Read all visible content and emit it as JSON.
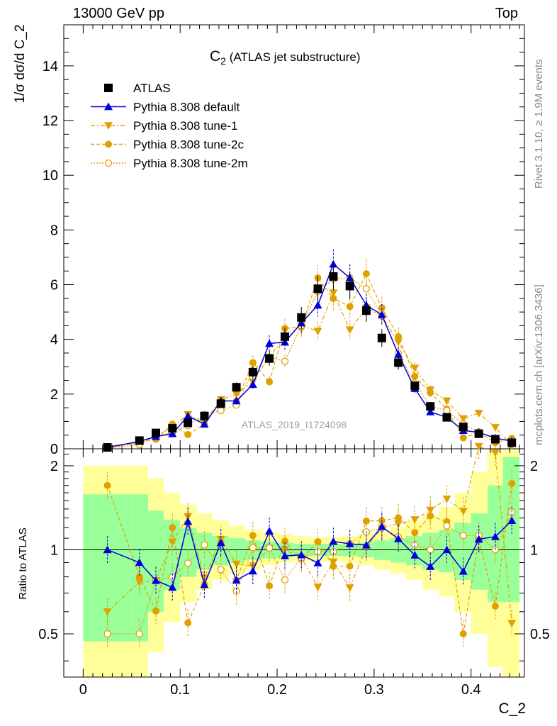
{
  "header": {
    "left_label": "13000 GeV pp",
    "right_label": "Top",
    "side_label_1": "Rivet 3.1.10, ≥ 1.9M events",
    "side_label_2": "mcplots.cern.ch [arXiv:1306.3436]"
  },
  "chart_data": {
    "type": "line",
    "title": "C",
    "title_sub": "2",
    "title_suffix": " (ATLAS jet substructure)",
    "watermark": "ATLAS_2019_I1724098",
    "xlabel": "C_2",
    "ylabel_main": "1/σ dσ/d C_2",
    "ylabel_ratio": "Ratio to ATLAS",
    "xlim": [
      -0.02,
      0.455
    ],
    "ylim_main": [
      0,
      15.5
    ],
    "ylim_ratio": [
      0.35,
      2.3
    ],
    "x_ticks": [
      "0",
      "0.1",
      "0.2",
      "0.3",
      "0.4"
    ],
    "y_ticks_main": [
      "0",
      "2",
      "4",
      "6",
      "8",
      "10",
      "12",
      "14"
    ],
    "y_ticks_ratio": [
      "0.5",
      "1",
      "2"
    ],
    "x": [
      0.025,
      0.058,
      0.075,
      0.092,
      0.108,
      0.125,
      0.142,
      0.158,
      0.175,
      0.192,
      0.208,
      0.225,
      0.242,
      0.258,
      0.275,
      0.292,
      0.308,
      0.325,
      0.342,
      0.358,
      0.375,
      0.392,
      0.408,
      0.425,
      0.442
    ],
    "series": [
      {
        "name": "ATLAS",
        "color": "#000000",
        "marker": "square",
        "values": [
          0.05,
          0.3,
          0.58,
          0.75,
          0.95,
          1.2,
          1.65,
          2.25,
          2.8,
          3.3,
          4.1,
          4.8,
          5.85,
          6.3,
          5.95,
          5.05,
          4.05,
          3.15,
          2.3,
          1.55,
          1.15,
          0.8,
          0.55,
          0.35,
          0.22
        ]
      },
      {
        "name": "Pythia 8.308 default",
        "color": "#0000dd",
        "marker": "triangle-up",
        "values": [
          0.05,
          0.27,
          0.45,
          0.55,
          1.2,
          0.9,
          1.75,
          1.75,
          2.35,
          3.85,
          3.9,
          4.6,
          5.25,
          6.75,
          6.25,
          5.25,
          4.9,
          3.45,
          2.2,
          1.35,
          1.15,
          0.67,
          0.6,
          0.39,
          0.28
        ]
      },
      {
        "name": "Pythia 8.308 tune-1",
        "color": "#e0a000",
        "marker": "triangle-down",
        "values": [
          0.03,
          0.23,
          0.45,
          0.8,
          1.25,
          0.95,
          1.8,
          2.0,
          2.45,
          3.35,
          4.1,
          4.5,
          4.3,
          5.7,
          4.35,
          5.15,
          4.85,
          3.9,
          2.95,
          2.15,
          1.75,
          1.1,
          1.3,
          0.78,
          0.12
        ]
      },
      {
        "name": "Pythia 8.308 tune-2c",
        "color": "#e0a000",
        "marker": "circle",
        "values": [
          0.085,
          0.24,
          0.35,
          0.9,
          0.52,
          0.9,
          1.75,
          1.75,
          3.15,
          2.45,
          4.4,
          4.45,
          6.25,
          5.5,
          5.2,
          6.4,
          5.15,
          4.1,
          2.65,
          2.05,
          1.45,
          0.4,
          0.6,
          0.22,
          0.38
        ]
      },
      {
        "name": "Pythia 8.308 tune-2m",
        "color": "#e0a000",
        "marker": "circle-open",
        "values": [
          0.025,
          0.15,
          0.45,
          0.6,
          0.85,
          1.25,
          1.4,
          1.6,
          2.85,
          3.35,
          3.2,
          4.5,
          5.75,
          6.2,
          6.25,
          5.85,
          4.85,
          3.5,
          2.4,
          1.55,
          1.4,
          0.9,
          0.62,
          0.35,
          0.3
        ]
      }
    ],
    "ratio_band": {
      "x_edges": [
        0.0,
        0.05,
        0.067,
        0.083,
        0.1,
        0.117,
        0.133,
        0.15,
        0.167,
        0.183,
        0.2,
        0.217,
        0.233,
        0.25,
        0.267,
        0.283,
        0.3,
        0.317,
        0.333,
        0.35,
        0.367,
        0.383,
        0.4,
        0.417,
        0.433,
        0.45
      ],
      "inner_lo": [
        0.47,
        0.47,
        0.6,
        0.72,
        0.8,
        0.85,
        0.88,
        0.9,
        0.92,
        0.93,
        0.94,
        0.95,
        0.95,
        0.95,
        0.95,
        0.94,
        0.92,
        0.9,
        0.88,
        0.85,
        0.83,
        0.78,
        0.72,
        0.65,
        0.65
      ],
      "inner_hi": [
        1.58,
        1.58,
        1.38,
        1.28,
        1.2,
        1.15,
        1.12,
        1.1,
        1.08,
        1.07,
        1.06,
        1.05,
        1.05,
        1.05,
        1.05,
        1.06,
        1.08,
        1.1,
        1.12,
        1.15,
        1.18,
        1.25,
        1.35,
        1.7,
        2.15
      ],
      "outer_lo": [
        0.35,
        0.35,
        0.43,
        0.55,
        0.65,
        0.72,
        0.78,
        0.82,
        0.85,
        0.88,
        0.9,
        0.91,
        0.91,
        0.91,
        0.9,
        0.88,
        0.85,
        0.82,
        0.78,
        0.72,
        0.68,
        0.6,
        0.5,
        0.38,
        0.35
      ],
      "outer_hi": [
        2.0,
        2.0,
        1.8,
        1.6,
        1.45,
        1.35,
        1.28,
        1.22,
        1.18,
        1.16,
        1.14,
        1.12,
        1.11,
        1.11,
        1.12,
        1.14,
        1.17,
        1.21,
        1.27,
        1.33,
        1.42,
        1.6,
        1.9,
        2.25,
        2.3
      ],
      "inner_color": "#99ff99",
      "outer_color": "#ffff99"
    }
  }
}
